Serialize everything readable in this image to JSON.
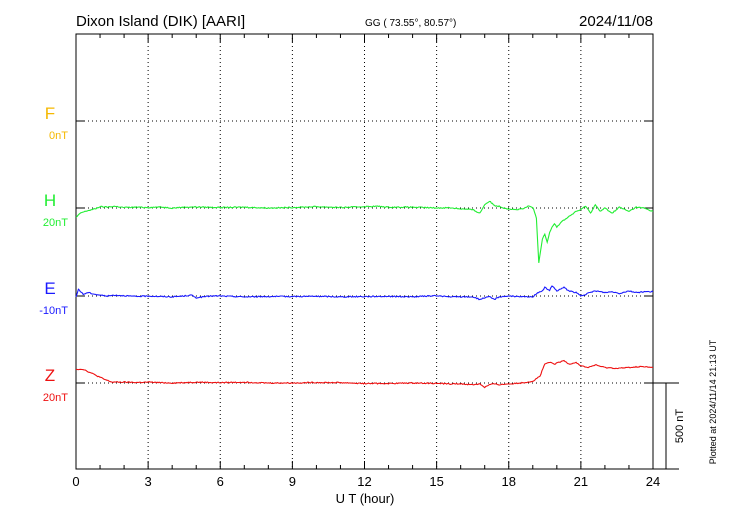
{
  "header": {
    "station": "Dixon Island (DIK)  [AARI]",
    "coords": "GG ( 73.55°,  80.57°)",
    "date": "2024/11/08"
  },
  "side_note": "Plotted at 2024/11/14 21:13 UT",
  "chart_data": {
    "type": "line",
    "xlabel": "U T (hour)",
    "xlim": [
      0,
      24
    ],
    "xticks": [
      "0",
      "3",
      "6",
      "9",
      "12",
      "15",
      "18",
      "21",
      "24"
    ],
    "scale_bar_label": "500 nT",
    "scale_bar_nT": 500,
    "series": [
      {
        "name": "F",
        "baseline_label": "0nT",
        "color": "#f5b800",
        "x": [],
        "y": []
      },
      {
        "name": "H",
        "baseline_label": "20nT",
        "color": "#22ee33",
        "x": [
          0,
          0.2,
          0.5,
          0.8,
          1.0,
          1.3,
          1.6,
          2.0,
          2.5,
          3.0,
          3.5,
          4.0,
          4.5,
          5.0,
          6.0,
          7.0,
          8.0,
          9.0,
          10.0,
          11.0,
          12.0,
          12.5,
          13.0,
          14.0,
          15.0,
          15.5,
          16.0,
          16.5,
          16.8,
          17.0,
          17.2,
          17.4,
          17.6,
          17.8,
          18.0,
          18.3,
          18.6,
          18.8,
          19.0,
          19.15,
          19.25,
          19.4,
          19.5,
          19.6,
          19.7,
          19.8,
          19.9,
          20.0,
          20.2,
          20.4,
          20.6,
          20.8,
          21.0,
          21.2,
          21.4,
          21.6,
          21.8,
          22.0,
          22.3,
          22.6,
          23.0,
          23.3,
          23.6,
          24.0
        ],
        "y": [
          -55,
          -28,
          -15,
          -5,
          8,
          5,
          10,
          3,
          5,
          3,
          6,
          0,
          5,
          6,
          3,
          5,
          0,
          3,
          8,
          3,
          8,
          10,
          5,
          5,
          0,
          2,
          -5,
          -10,
          -30,
          20,
          40,
          15,
          10,
          0,
          -5,
          -10,
          -5,
          10,
          5,
          -60,
          -320,
          -180,
          -150,
          -200,
          -140,
          -110,
          -90,
          -110,
          -80,
          -60,
          -40,
          -20,
          -10,
          12,
          -30,
          20,
          -20,
          0,
          -30,
          5,
          -20,
          5,
          0,
          -20
        ]
      },
      {
        "name": "E",
        "baseline_label": "-10nT",
        "color": "#1a1aff",
        "x": [
          0,
          0.1,
          0.3,
          0.5,
          0.8,
          1.0,
          1.3,
          1.6,
          2.0,
          2.5,
          3.0,
          3.5,
          4.0,
          4.5,
          4.8,
          5.0,
          5.3,
          5.6,
          6.0,
          7.0,
          8.0,
          9.0,
          10.0,
          11.0,
          12.0,
          13.0,
          14.0,
          15.0,
          15.5,
          16.0,
          16.5,
          16.8,
          17.0,
          17.2,
          17.4,
          17.6,
          18.0,
          18.5,
          19.0,
          19.2,
          19.4,
          19.5,
          19.6,
          19.7,
          19.8,
          20.0,
          20.3,
          20.5,
          20.8,
          21.0,
          21.3,
          21.6,
          22.0,
          22.3,
          22.6,
          23.0,
          23.3,
          23.6,
          24.0
        ],
        "y": [
          -8,
          40,
          10,
          20,
          10,
          5,
          0,
          5,
          2,
          -3,
          0,
          -3,
          -5,
          0,
          5,
          -10,
          -5,
          0,
          0,
          -5,
          -3,
          -3,
          -2,
          -5,
          -3,
          -2,
          -5,
          2,
          -5,
          -5,
          -5,
          -20,
          -10,
          -5,
          -20,
          -5,
          0,
          -5,
          -5,
          20,
          30,
          50,
          40,
          30,
          60,
          30,
          50,
          30,
          20,
          0,
          15,
          30,
          20,
          25,
          15,
          30,
          20,
          25,
          25
        ]
      },
      {
        "name": "Z",
        "baseline_label": "20nT",
        "color": "#ee1111",
        "x": [
          0,
          0.3,
          0.6,
          0.9,
          1.2,
          1.5,
          2.0,
          2.5,
          3.0,
          4.0,
          5.0,
          6.0,
          7.0,
          8.0,
          9.0,
          10.0,
          11.0,
          12.0,
          13.0,
          14.0,
          15.0,
          15.5,
          16.0,
          16.5,
          16.8,
          17.0,
          17.2,
          17.4,
          17.6,
          18.0,
          18.5,
          19.0,
          19.3,
          19.5,
          19.7,
          19.9,
          20.1,
          20.3,
          20.5,
          20.8,
          21.0,
          21.3,
          21.6,
          22.0,
          22.5,
          23.0,
          23.5,
          24.0
        ],
        "y": [
          80,
          80,
          60,
          40,
          20,
          5,
          5,
          3,
          5,
          0,
          5,
          2,
          5,
          0,
          0,
          3,
          2,
          -3,
          -3,
          0,
          -2,
          -5,
          -5,
          -10,
          -5,
          -25,
          -10,
          -5,
          -10,
          -5,
          0,
          10,
          40,
          110,
          120,
          110,
          120,
          130,
          110,
          120,
          100,
          90,
          105,
          90,
          85,
          90,
          95,
          90
        ]
      }
    ]
  }
}
